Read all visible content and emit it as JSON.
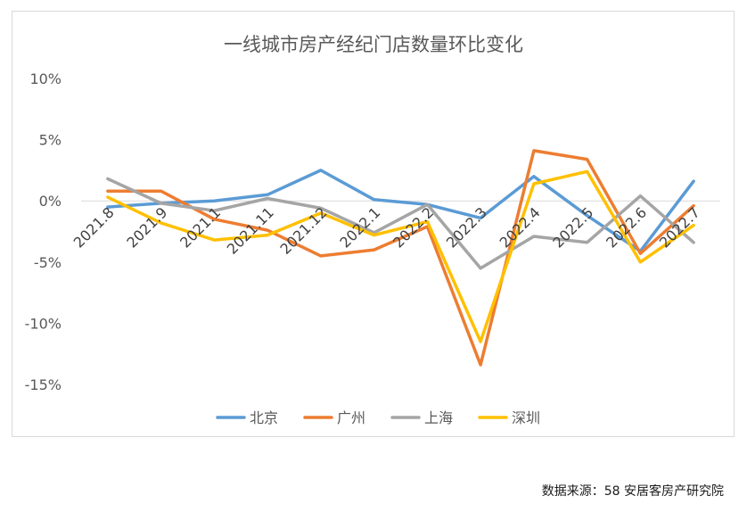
{
  "chart_data": {
    "type": "line",
    "title": "一线城市房产经纪门店数量环比变化",
    "xlabel": "",
    "ylabel": "",
    "categories": [
      "2021.8",
      "2021.9",
      "2021.1",
      "2021.11",
      "2021.12",
      "2022.1",
      "2022.2",
      "2022.3",
      "2022.4",
      "2022.5",
      "2022.6",
      "2022.7"
    ],
    "y_tick_labels": [
      "10%",
      "5%",
      "0%",
      "-5%",
      "-10%",
      "-15%"
    ],
    "ylim": [
      -15,
      10
    ],
    "y_unit": "%",
    "grid": false,
    "legend_position": "bottom",
    "series": [
      {
        "name": "北京",
        "color": "#5b9bd5",
        "values": [
          -0.5,
          -0.2,
          0.0,
          0.5,
          2.5,
          0.1,
          -0.3,
          -1.4,
          2.0,
          -1.2,
          -4.1,
          1.6
        ]
      },
      {
        "name": "广州",
        "color": "#ed7d31",
        "values": [
          0.8,
          0.8,
          -1.5,
          -2.4,
          -4.5,
          -4.0,
          -2.1,
          -13.4,
          4.1,
          3.4,
          -4.3,
          -0.4
        ]
      },
      {
        "name": "上海",
        "color": "#a5a5a5",
        "values": [
          1.8,
          -0.2,
          -0.8,
          0.2,
          -0.6,
          -2.6,
          -0.3,
          -5.5,
          -2.9,
          -3.4,
          0.4,
          -3.4
        ]
      },
      {
        "name": "深圳",
        "color": "#ffc000",
        "values": [
          0.3,
          -1.8,
          -3.2,
          -2.8,
          -1.0,
          -2.8,
          -1.7,
          -11.5,
          1.4,
          2.4,
          -5.0,
          -2.0
        ]
      }
    ]
  },
  "source": "数据来源：58 安居客房产研究院"
}
